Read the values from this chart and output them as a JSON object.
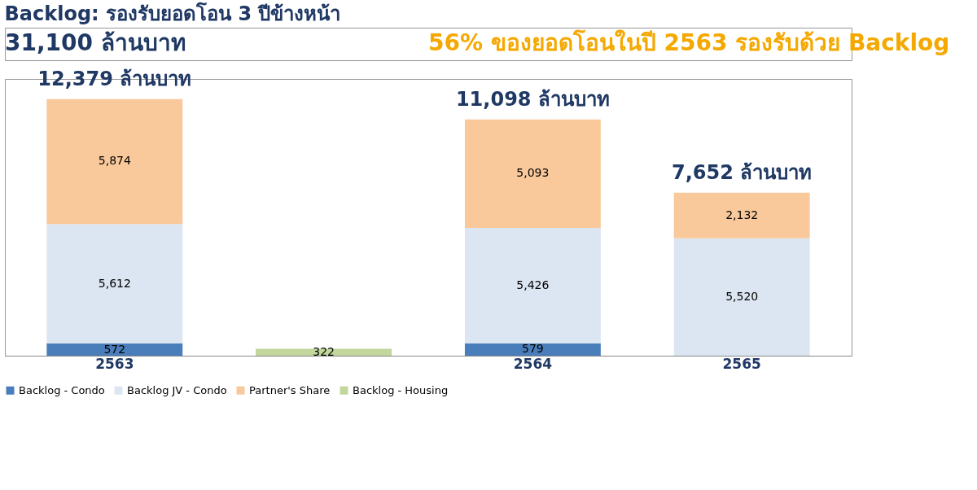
{
  "chart_data": {
    "type": "bar",
    "title": "Backlog: รองรับยอดโอน 3 ปีข้างหน้า",
    "annotations": [
      "31,100 ล้านบาท",
      "56% ของยอดโอนในปี 2563 รองรับด้วย Backlog",
      {
        "text": "12,379 ล้านบาท",
        "x": "2563",
        "y": 12058
      },
      {
        "text": "11,098 ล้านบาท",
        "x": "2564",
        "y": 11098
      },
      {
        "text": "7,652 ล้านบาท",
        "x": "2565",
        "y": 7652
      }
    ],
    "categories": [
      "2563",
      null,
      "2564",
      "2565"
    ],
    "stacked": true,
    "series": [
      {
        "name": "Backlog - Condo",
        "color": "#4a7ebb",
        "values": [
          572,
          null,
          579,
          null
        ],
        "value_labels": [
          "572",
          null,
          "579",
          null
        ]
      },
      {
        "name": "Backlog JV - Condo",
        "color": "#dce6f2",
        "values": [
          5612,
          null,
          5426,
          5520
        ],
        "value_labels": [
          "5,612",
          null,
          "5,426",
          "5,520"
        ]
      },
      {
        "name": "Partner's Share",
        "color": "#f9c89b",
        "values": [
          5874,
          null,
          5093,
          2132
        ],
        "value_labels": [
          "5,874",
          null,
          "5,093",
          "2,132"
        ]
      },
      {
        "name": "Backlog - Housing",
        "color": "#c3d69b",
        "values": [
          null,
          322,
          null,
          null
        ],
        "value_labels": [
          null,
          "322",
          null,
          null
        ]
      }
    ],
    "legend": "bottom",
    "grid": false
  }
}
